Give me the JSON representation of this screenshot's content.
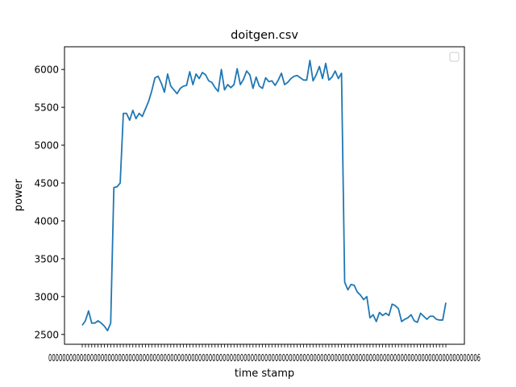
{
  "chart_data": {
    "type": "line",
    "title": "doitgen.csv",
    "xlabel": "time stamp",
    "ylabel": "power",
    "ylim": [
      2370,
      6300
    ],
    "yticks": [
      2500,
      3000,
      3500,
      4000,
      4500,
      5000,
      5500,
      6000
    ],
    "x_tick_text": "0000000000000000000000000000000000000000000000000000000000000000000000000000000000000000000000000000000000000000000000000006",
    "legend": "empty box, top-right",
    "grid": false,
    "series": [
      {
        "color": "#1f77b4",
        "values": [
          2620,
          2680,
          2810,
          2650,
          2650,
          2680,
          2650,
          2610,
          2550,
          2650,
          4440,
          4450,
          4500,
          5420,
          5420,
          5330,
          5460,
          5350,
          5420,
          5380,
          5480,
          5580,
          5720,
          5890,
          5910,
          5820,
          5700,
          5940,
          5780,
          5730,
          5680,
          5750,
          5780,
          5790,
          5970,
          5800,
          5940,
          5880,
          5960,
          5930,
          5850,
          5830,
          5760,
          5710,
          6000,
          5730,
          5800,
          5760,
          5800,
          6010,
          5800,
          5870,
          5980,
          5930,
          5750,
          5900,
          5780,
          5750,
          5890,
          5840,
          5850,
          5790,
          5860,
          5950,
          5800,
          5830,
          5880,
          5910,
          5920,
          5890,
          5860,
          5860,
          6120,
          5850,
          5930,
          6040,
          5880,
          6080,
          5860,
          5900,
          5980,
          5880,
          5950,
          3190,
          3090,
          3160,
          3150,
          3060,
          3020,
          2960,
          3000,
          2720,
          2760,
          2670,
          2790,
          2750,
          2780,
          2750,
          2900,
          2880,
          2840,
          2670,
          2700,
          2720,
          2760,
          2680,
          2660,
          2780,
          2740,
          2700,
          2740,
          2740,
          2700,
          2690,
          2690,
          2920
        ]
      }
    ]
  }
}
